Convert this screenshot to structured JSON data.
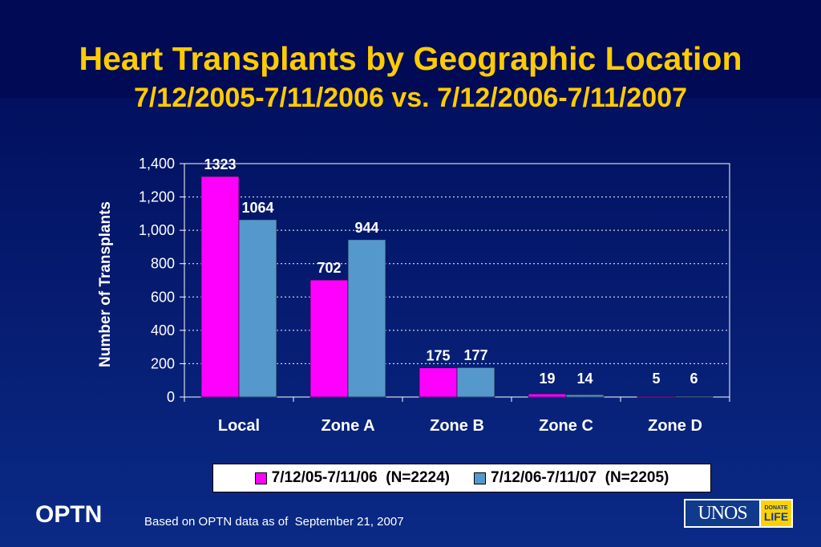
{
  "title": "Heart Transplants by Geographic Location",
  "subtitle": "7/12/2005-7/11/2006 vs. 7/12/2006-7/11/2007",
  "colors": {
    "series1": "#ff00ff",
    "series2": "#5599cc",
    "title": "#ffcc00"
  },
  "chart_data": {
    "type": "bar",
    "categories": [
      "Local",
      "Zone A",
      "Zone B",
      "Zone C",
      "Zone D"
    ],
    "series": [
      {
        "name": "7/12/05-7/11/06  (N=2224)",
        "values": [
          1323,
          702,
          175,
          19,
          5
        ],
        "data_labels": [
          "1323",
          "702",
          "175",
          "19",
          "5"
        ]
      },
      {
        "name": "7/12/06-7/11/07  (N=2205)",
        "values": [
          1064,
          944,
          177,
          14,
          6
        ],
        "data_labels": [
          "1064",
          "944",
          "177",
          "14",
          "6"
        ]
      }
    ],
    "title": "Heart Transplants by Geographic Location",
    "subtitle": "7/12/2005-7/11/2006 vs. 7/12/2006-7/11/2007",
    "xlabel": "",
    "ylabel": "Number of Transplants",
    "ylim": [
      0,
      1400
    ],
    "yticks": [
      0,
      200,
      400,
      600,
      800,
      1000,
      1200,
      1400
    ],
    "ytick_labels": [
      "0",
      "200",
      "400",
      "600",
      "800",
      "1,000",
      "1,200",
      "1,400"
    ],
    "grid": true,
    "legend": "bottom"
  },
  "footer": {
    "brand": "OPTN",
    "note": "Based on OPTN data as of  September 21, 2007",
    "logo_text": "UNOS",
    "logo_side_top": "DONATE",
    "logo_side_bottom": "LIFE"
  }
}
